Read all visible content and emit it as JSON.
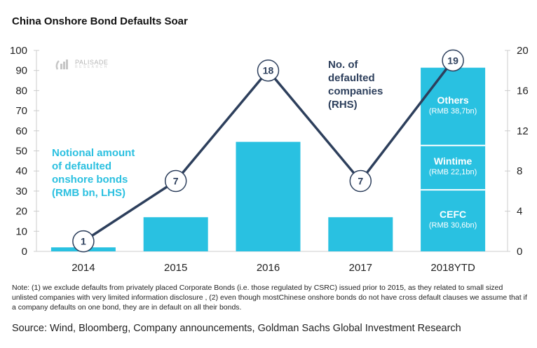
{
  "title": "China Onshore Bond Defaults Soar",
  "logo": {
    "name": "PALISADE",
    "sub": "RESEARCH"
  },
  "colors": {
    "bar": "#29c1e1",
    "line": "#2d3f5c",
    "axis": "#cccccc",
    "lhs_annotation": "#2bc0e0",
    "rhs_annotation": "#2d3f5c"
  },
  "chart_data": {
    "type": "bar+line",
    "title": "China Onshore Bond Defaults Soar",
    "categories": [
      "2014",
      "2015",
      "2016",
      "2017",
      "2018YTD"
    ],
    "series": [
      {
        "name": "Notional amount of defaulted onshore bonds (RMB bn, LHS)",
        "type": "bar",
        "axis": "left",
        "values": [
          2,
          17,
          54.5,
          17,
          91.4
        ]
      },
      {
        "name": "No. of defaulted companies (RHS)",
        "type": "line",
        "axis": "right",
        "values": [
          1,
          7,
          18,
          7,
          19
        ],
        "data_labels": [
          "1",
          "7",
          "18",
          "7",
          "19"
        ]
      }
    ],
    "stacked_2018YTD": [
      {
        "name": "CEFC",
        "label": "(RMB 30,6bn)",
        "value": 30.6
      },
      {
        "name": "Wintime",
        "label": "(RMB 22,1bn)",
        "value": 22.1
      },
      {
        "name": "Others",
        "label": "(RMB 38,7bn)",
        "value": 38.7
      }
    ],
    "left_axis": {
      "range": [
        0,
        100
      ],
      "ticks": [
        "0",
        "10",
        "20",
        "30",
        "40",
        "50",
        "60",
        "70",
        "80",
        "90",
        "100"
      ]
    },
    "right_axis": {
      "range": [
        0,
        20
      ],
      "ticks": [
        "0",
        "4",
        "8",
        "12",
        "16",
        "20"
      ]
    },
    "annotations": {
      "lhs": "Notional amount\nof defaulted\nonshore bonds\n(RMB bn, LHS)",
      "rhs": "No. of\ndefaulted\ncompanies\n(RHS)"
    },
    "grid": false,
    "legend": "none"
  },
  "note": "Note: (1) we exclude defaults from privately placed Corporate Bonds (i.e. those regulated by CSRC) issued prior to 2015, as they related to small sized unlisted companies with very limited information disclosure , (2) even though mostChinese onshore bonds do not have cross default clauses we assume that if a company defaults on one bond, they are in default on all their bonds.",
  "source": "Source: Wind, Bloomberg, Company announcements, Goldman Sachs Global Investment Research"
}
